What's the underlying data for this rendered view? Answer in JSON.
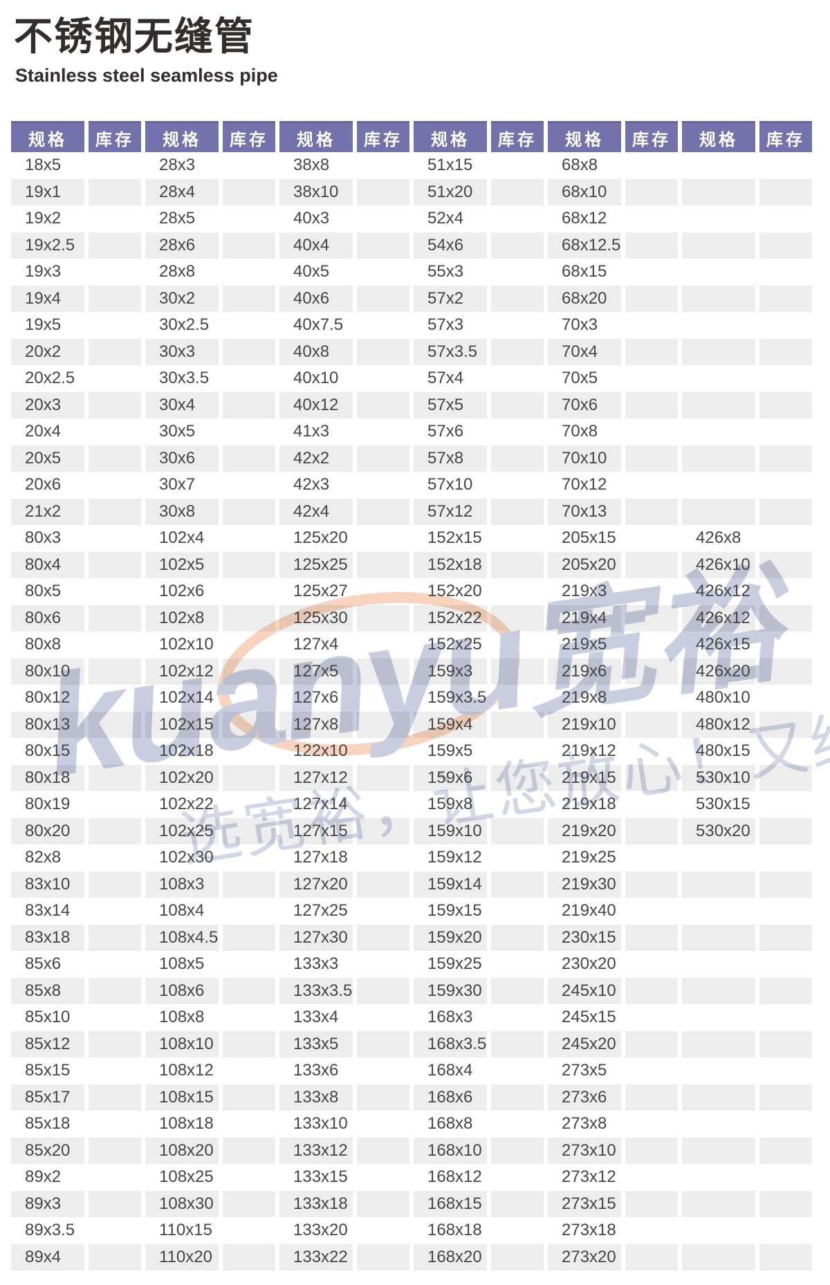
{
  "page": {
    "title_cn": "不锈钢无缝管",
    "title_en": "Stainless steel seamless pipe"
  },
  "colors": {
    "header_bg": "#7472ac",
    "header_bg_dark": "#67649c",
    "row_stripe": "#ececec",
    "cell_text": "#464646",
    "title": "#322c2a",
    "watermark_letters": "#c8cddf",
    "watermark_slogan": "#d2d6e6",
    "watermark_ring": "#f2b18a"
  },
  "watermark": {
    "logo_latin": "kuanyu",
    "logo_cjk": "宽裕",
    "slogan": "选宽裕，让您放心！又给力"
  },
  "table": {
    "header_labels": [
      "规格",
      "库存",
      "规格",
      "库存",
      "规格",
      "库存",
      "规格",
      "库存",
      "规格",
      "库存",
      "规格",
      "库存"
    ],
    "rows": [
      [
        "18x5",
        "28x3",
        "38x8",
        "51x15",
        "68x8",
        ""
      ],
      [
        "19x1",
        "28x4",
        "38x10",
        "51x20",
        "68x10",
        ""
      ],
      [
        "19x2",
        "28x5",
        "40x3",
        "52x4",
        "68x12",
        ""
      ],
      [
        "19x2.5",
        "28x6",
        "40x4",
        "54x6",
        "68x12.5",
        ""
      ],
      [
        "19x3",
        "28x8",
        "40x5",
        "55x3",
        "68x15",
        ""
      ],
      [
        "19x4",
        "30x2",
        "40x6",
        "57x2",
        "68x20",
        ""
      ],
      [
        "19x5",
        "30x2.5",
        "40x7.5",
        "57x3",
        "70x3",
        ""
      ],
      [
        "20x2",
        "30x3",
        "40x8",
        "57x3.5",
        "70x4",
        ""
      ],
      [
        "20x2.5",
        "30x3.5",
        "40x10",
        "57x4",
        "70x5",
        ""
      ],
      [
        "20x3",
        "30x4",
        "40x12",
        "57x5",
        "70x6",
        ""
      ],
      [
        "20x4",
        "30x5",
        "41x3",
        "57x6",
        "70x8",
        ""
      ],
      [
        "20x5",
        "30x6",
        "42x2",
        "57x8",
        "70x10",
        ""
      ],
      [
        "20x6",
        "30x7",
        "42x3",
        "57x10",
        "70x12",
        ""
      ],
      [
        "21x2",
        "30x8",
        "42x4",
        "57x12",
        "70x13",
        ""
      ],
      [
        "80x3",
        "102x4",
        "125x20",
        "152x15",
        "205x15",
        "426x8"
      ],
      [
        "80x4",
        "102x5",
        "125x25",
        "152x18",
        "205x20",
        "426x10"
      ],
      [
        "80x5",
        "102x6",
        "125x27",
        "152x20",
        "219x3",
        "426x12"
      ],
      [
        "80x6",
        "102x8",
        "125x30",
        "152x22",
        "219x4",
        "426x12"
      ],
      [
        "80x8",
        "102x10",
        "127x4",
        "152x25",
        "219x5",
        "426x15"
      ],
      [
        "80x10",
        "102x12",
        "127x5",
        "159x3",
        "219x6",
        "426x20"
      ],
      [
        "80x12",
        "102x14",
        "127x6",
        "159x3.5",
        "219x8",
        "480x10"
      ],
      [
        "80x13",
        "102x15",
        "127x8",
        "159x4",
        "219x10",
        "480x12"
      ],
      [
        "80x15",
        "102x18",
        "122x10",
        "159x5",
        "219x12",
        "480x15"
      ],
      [
        "80x18",
        "102x20",
        "127x12",
        "159x6",
        "219x15",
        "530x10"
      ],
      [
        "80x19",
        "102x22",
        "127x14",
        "159x8",
        "219x18",
        "530x15"
      ],
      [
        "80x20",
        "102x25",
        "127x15",
        "159x10",
        "219x20",
        "530x20"
      ],
      [
        "82x8",
        "102x30",
        "127x18",
        "159x12",
        "219x25",
        ""
      ],
      [
        "83x10",
        "108x3",
        "127x20",
        "159x14",
        "219x30",
        ""
      ],
      [
        "83x14",
        "108x4",
        "127x25",
        "159x15",
        "219x40",
        ""
      ],
      [
        "83x18",
        "108x4.5",
        "127x30",
        "159x20",
        "230x15",
        ""
      ],
      [
        "85x6",
        "108x5",
        "133x3",
        "159x25",
        "230x20",
        ""
      ],
      [
        "85x8",
        "108x6",
        "133x3.5",
        "159x30",
        "245x10",
        ""
      ],
      [
        "85x10",
        "108x8",
        "133x4",
        "168x3",
        "245x15",
        ""
      ],
      [
        "85x12",
        "108x10",
        "133x5",
        "168x3.5",
        "245x20",
        ""
      ],
      [
        "85x15",
        "108x12",
        "133x6",
        "168x4",
        "273x5",
        ""
      ],
      [
        "85x17",
        "108x15",
        "133x8",
        "168x6",
        "273x6",
        ""
      ],
      [
        "85x18",
        "108x18",
        "133x10",
        "168x8",
        "273x8",
        ""
      ],
      [
        "85x20",
        "108x20",
        "133x12",
        "168x10",
        "273x10",
        ""
      ],
      [
        "89x2",
        "108x25",
        "133x15",
        "168x12",
        "273x12",
        ""
      ],
      [
        "89x3",
        "108x30",
        "133x18",
        "168x15",
        "273x15",
        ""
      ],
      [
        "89x3.5",
        "110x15",
        "133x20",
        "168x18",
        "273x18",
        ""
      ],
      [
        "89x4",
        "110x20",
        "133x22",
        "168x20",
        "273x20",
        ""
      ]
    ]
  }
}
